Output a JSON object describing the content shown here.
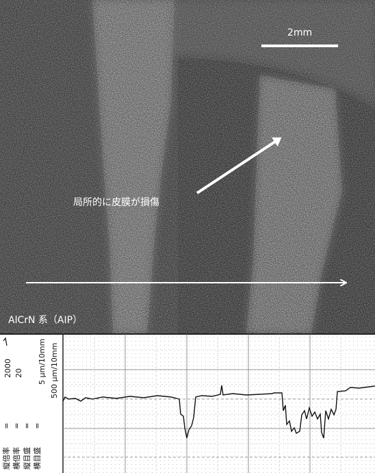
{
  "micrograph": {
    "scale_bar": "2mm",
    "annotation": "局所的に皮膜が損傷",
    "caption": "AlCrN 系（AIP）"
  },
  "profile": {
    "params": [
      {
        "label": "縦倍率",
        "sign": "=",
        "value": "2000"
      },
      {
        "label": "横倍率",
        "sign": "=",
        "value": "20"
      },
      {
        "label": "縦目盛",
        "sign": "=",
        "value": "5 μm/10mm"
      },
      {
        "label": "横目盛",
        "sign": "=",
        "value": "500 μm/10mm"
      }
    ]
  }
}
